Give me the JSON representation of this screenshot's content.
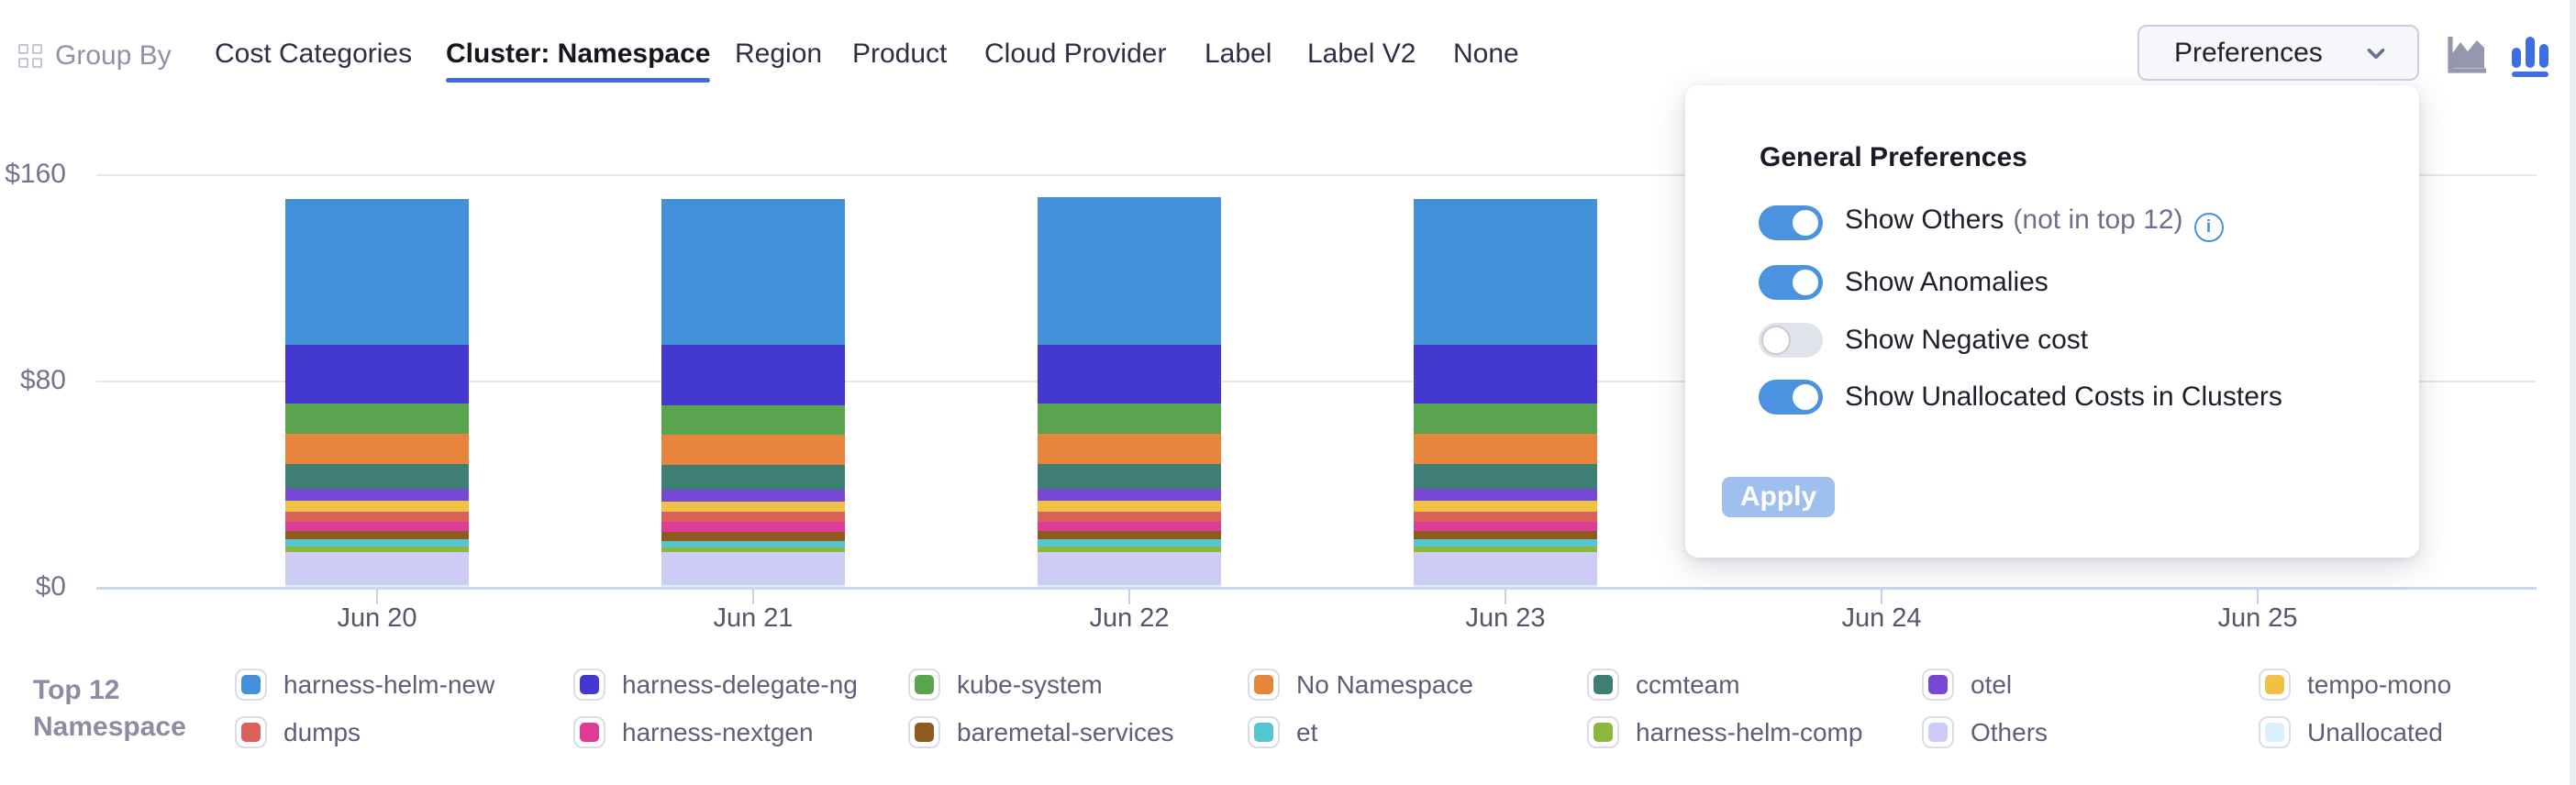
{
  "header": {
    "group_by_label": "Group By",
    "tabs": [
      "Cost Categories",
      "Cluster: Namespace",
      "Region",
      "Product",
      "Cloud Provider",
      "Label",
      "Label V2",
      "None"
    ],
    "active_tab": "Cluster: Namespace",
    "preferences_button": "Preferences",
    "chart_type_icons": [
      "area-chart-icon",
      "bar-chart-icon"
    ],
    "active_chart_type": "bar"
  },
  "preferences_panel": {
    "title": "General Preferences",
    "toggles": [
      {
        "label": "Show Others",
        "suffix": "(not in top 12)",
        "info": true,
        "on": true
      },
      {
        "label": "Show Anomalies",
        "suffix": "",
        "info": false,
        "on": true
      },
      {
        "label": "Show Negative cost",
        "suffix": "",
        "info": false,
        "on": false
      },
      {
        "label": "Show Unallocated Costs in Clusters",
        "suffix": "",
        "info": false,
        "on": true
      }
    ],
    "apply_label": "Apply"
  },
  "chart_data": {
    "type": "bar",
    "stacked": true,
    "title": "",
    "xlabel": "",
    "ylabel": "",
    "unit": "$",
    "ylim": [
      0,
      160
    ],
    "yticks": [
      {
        "label": "$0",
        "value": 0
      },
      {
        "label": "$80",
        "value": 80
      },
      {
        "label": "$160",
        "value": 160
      }
    ],
    "grid": "horizontal",
    "categories": [
      "Jun 20",
      "Jun 21",
      "Jun 22",
      "Jun 23",
      "Jun 24",
      "Jun 25"
    ],
    "bars_plotted": [
      "Jun 20",
      "Jun 21",
      "Jun 22",
      "Jun 23"
    ],
    "series": [
      {
        "name": "harness-helm-new",
        "color": "#4390DB",
        "values": [
          56.5,
          56.5,
          57.0,
          56.5
        ]
      },
      {
        "name": "harness-delegate-ng",
        "color": "#4439CE",
        "values": [
          23.0,
          23.5,
          23.0,
          23.0
        ]
      },
      {
        "name": "kube-system",
        "color": "#5AA44F",
        "values": [
          11.5,
          11.5,
          11.5,
          11.5
        ]
      },
      {
        "name": "No Namespace",
        "color": "#E8853D",
        "values": [
          12.0,
          11.8,
          12.0,
          12.0
        ]
      },
      {
        "name": "ccmteam",
        "color": "#3D7E75",
        "values": [
          9.6,
          9.6,
          9.6,
          9.6
        ]
      },
      {
        "name": "otel",
        "color": "#7748D3",
        "values": [
          4.6,
          4.5,
          4.6,
          4.6
        ]
      },
      {
        "name": "tempo-mono",
        "color": "#EFC144",
        "values": [
          4.0,
          3.8,
          4.0,
          4.0
        ]
      },
      {
        "name": "dumps",
        "color": "#D9615A",
        "values": [
          3.9,
          4.0,
          3.9,
          3.9
        ]
      },
      {
        "name": "harness-nextgen",
        "color": "#DC3C96",
        "values": [
          3.7,
          3.8,
          3.7,
          3.7
        ]
      },
      {
        "name": "baremetal-services",
        "color": "#8F5A1E",
        "values": [
          3.2,
          3.6,
          3.2,
          3.2
        ]
      },
      {
        "name": "et",
        "color": "#55C5D0",
        "values": [
          2.7,
          2.5,
          2.7,
          2.7
        ]
      },
      {
        "name": "harness-helm-comp",
        "color": "#8CB83E",
        "values": [
          2.2,
          2.0,
          2.2,
          2.2
        ]
      },
      {
        "name": "Others",
        "color": "#CCCCF4",
        "values": [
          12.8,
          12.6,
          12.8,
          12.8
        ]
      },
      {
        "name": "Unallocated",
        "color": "#D9F1FB",
        "values": [
          0.8,
          0.8,
          0.8,
          0.8
        ]
      }
    ]
  },
  "legend": {
    "title_line1": "Top 12",
    "title_line2": "Namespace",
    "items_column_major": [
      {
        "label": "harness-helm-new",
        "color": "#4390DB"
      },
      {
        "label": "dumps",
        "color": "#D9615A"
      },
      {
        "label": "harness-delegate-ng",
        "color": "#4439CE"
      },
      {
        "label": "harness-nextgen",
        "color": "#DC3C96"
      },
      {
        "label": "kube-system",
        "color": "#5AA44F"
      },
      {
        "label": "baremetal-services",
        "color": "#8F5A1E"
      },
      {
        "label": "No Namespace",
        "color": "#E8853D"
      },
      {
        "label": "et",
        "color": "#55C5D0"
      },
      {
        "label": "ccmteam",
        "color": "#3D7E75"
      },
      {
        "label": "harness-helm-comp",
        "color": "#8CB83E"
      },
      {
        "label": "otel",
        "color": "#7748D3"
      },
      {
        "label": "Others",
        "color": "#CCCCF4"
      },
      {
        "label": "tempo-mono",
        "color": "#EFC144"
      },
      {
        "label": "Unallocated",
        "color": "#D9F1FB"
      }
    ]
  }
}
